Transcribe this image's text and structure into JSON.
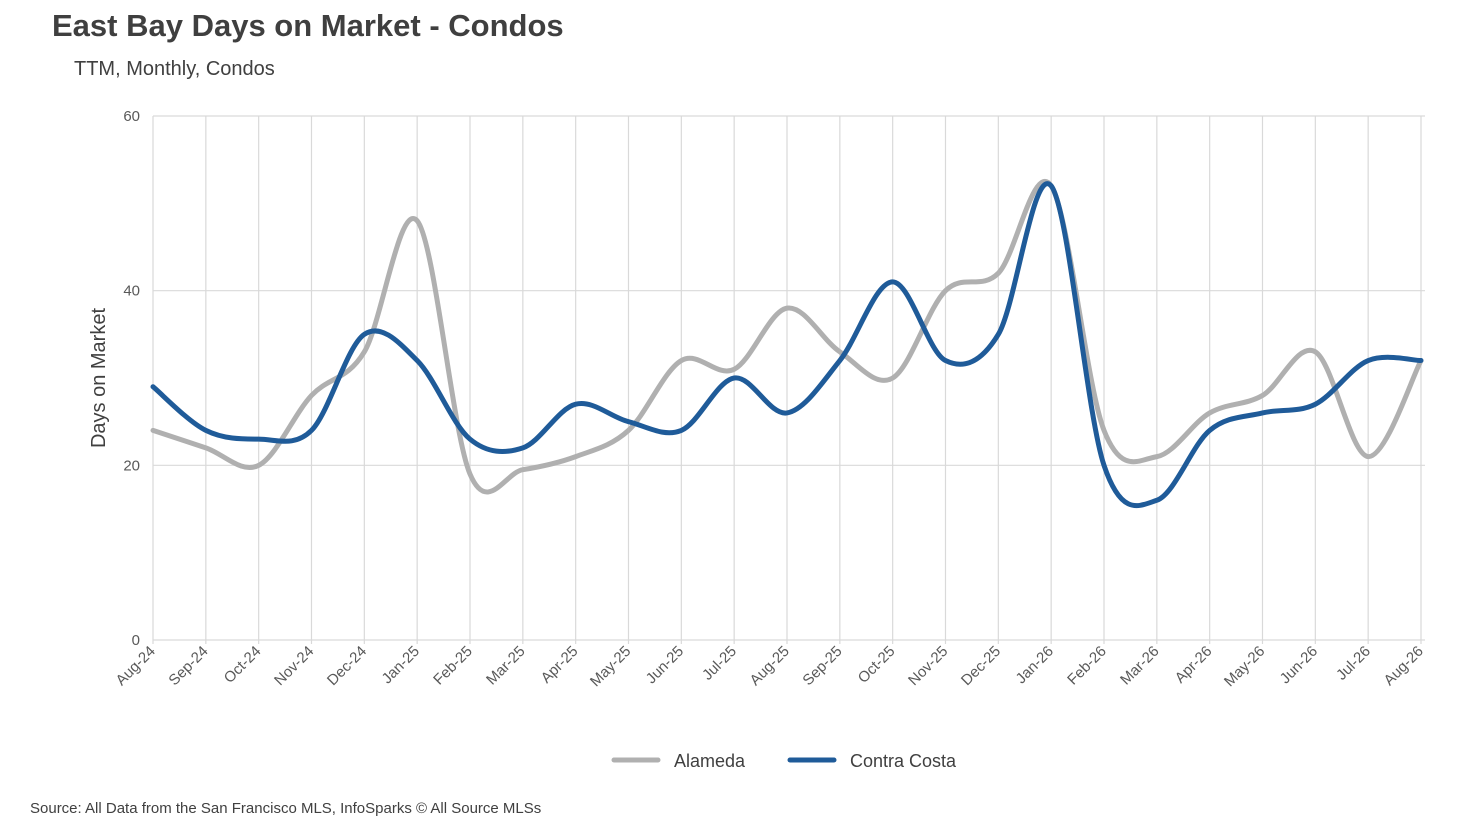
{
  "title": "East Bay Days on Market - Condos",
  "subtitle": "TTM, Monthly, Condos",
  "source": "Source: All Data from the San Francisco MLS, InfoSparks © All Source MLSs",
  "chart_data": {
    "type": "line",
    "title": "East Bay Days on Market - Condos",
    "subtitle": "TTM, Monthly, Condos",
    "ylabel": "Days on Market",
    "xlabel": "",
    "ylim": [
      0,
      60
    ],
    "yticks": [
      0,
      20,
      40,
      60
    ],
    "grid": true,
    "legend_position": "bottom-center",
    "categories": [
      "Aug-24",
      "Sep-24",
      "Oct-24",
      "Nov-24",
      "Dec-24",
      "Jan-25",
      "Feb-25",
      "Mar-25",
      "Apr-25",
      "May-25",
      "Jun-25",
      "Jul-25",
      "Aug-25",
      "Sep-25",
      "Oct-25",
      "Nov-25",
      "Dec-25",
      "Jan-26",
      "Feb-26",
      "Mar-26",
      "Apr-26",
      "May-26",
      "Jun-26",
      "Jul-26",
      "Aug-26"
    ],
    "series": [
      {
        "name": "Alameda",
        "color": "#b0b0b0",
        "values": [
          24,
          22,
          20,
          28,
          33,
          48,
          19,
          19.5,
          21,
          24,
          32,
          31,
          38,
          33,
          30,
          40,
          42,
          52,
          24,
          21,
          26,
          28,
          33,
          21,
          32
        ]
      },
      {
        "name": "Contra Costa",
        "color": "#1f5b99",
        "values": [
          29,
          24,
          23,
          24,
          35,
          32,
          23,
          22,
          27,
          25,
          24,
          30,
          26,
          32,
          41,
          32,
          35,
          52,
          20,
          16,
          24,
          26,
          27,
          32,
          32
        ]
      }
    ]
  }
}
